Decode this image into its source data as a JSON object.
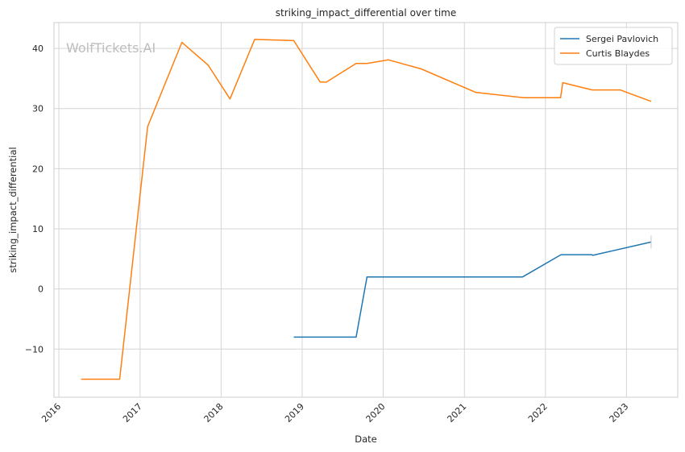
{
  "chart_data": {
    "type": "line",
    "title": "striking_impact_differential over time",
    "xlabel": "Date",
    "ylabel": "striking_impact_differential",
    "watermark": "WolfTickets.AI",
    "x_ticks": [
      "2016",
      "2017",
      "2018",
      "2019",
      "2020",
      "2021",
      "2022",
      "2023"
    ],
    "y_ticks": [
      -10,
      0,
      10,
      20,
      30,
      40
    ],
    "xlim": [
      "2015-12-10",
      "2023-08-20"
    ],
    "ylim": [
      -18,
      44.3
    ],
    "grid": true,
    "legend_position": "top-right",
    "series": [
      {
        "name": "Sergei Pavlovich",
        "color": "#1f77b4",
        "points": [
          [
            "2018-11-24",
            -8.0
          ],
          [
            "2019-09-01",
            -8.0
          ],
          [
            "2019-10-20",
            2.0
          ],
          [
            "2021-09-20",
            2.0
          ],
          [
            "2022-03-12",
            5.7
          ],
          [
            "2022-07-30",
            5.7
          ],
          [
            "2022-08-02",
            5.6
          ],
          [
            "2023-04-22",
            7.8
          ]
        ]
      },
      {
        "name": "Curtis Blaydes",
        "color": "#ff7f0e",
        "points": [
          [
            "2016-04-10",
            -15.0
          ],
          [
            "2016-10-01",
            -15.0
          ],
          [
            "2017-02-04",
            27.0
          ],
          [
            "2017-07-08",
            41.0
          ],
          [
            "2017-11-04",
            37.2
          ],
          [
            "2018-02-10",
            31.6
          ],
          [
            "2018-06-01",
            41.5
          ],
          [
            "2018-11-24",
            41.3
          ],
          [
            "2019-03-23",
            34.4
          ],
          [
            "2019-04-20",
            34.4
          ],
          [
            "2019-09-01",
            37.5
          ],
          [
            "2019-10-20",
            37.5
          ],
          [
            "2020-01-25",
            38.1
          ],
          [
            "2020-06-20",
            36.6
          ],
          [
            "2021-02-20",
            32.7
          ],
          [
            "2021-09-25",
            31.8
          ],
          [
            "2022-03-10",
            31.8
          ],
          [
            "2022-03-20",
            34.3
          ],
          [
            "2022-07-30",
            33.1
          ],
          [
            "2022-12-03",
            33.1
          ],
          [
            "2023-04-22",
            31.2
          ]
        ]
      }
    ]
  }
}
